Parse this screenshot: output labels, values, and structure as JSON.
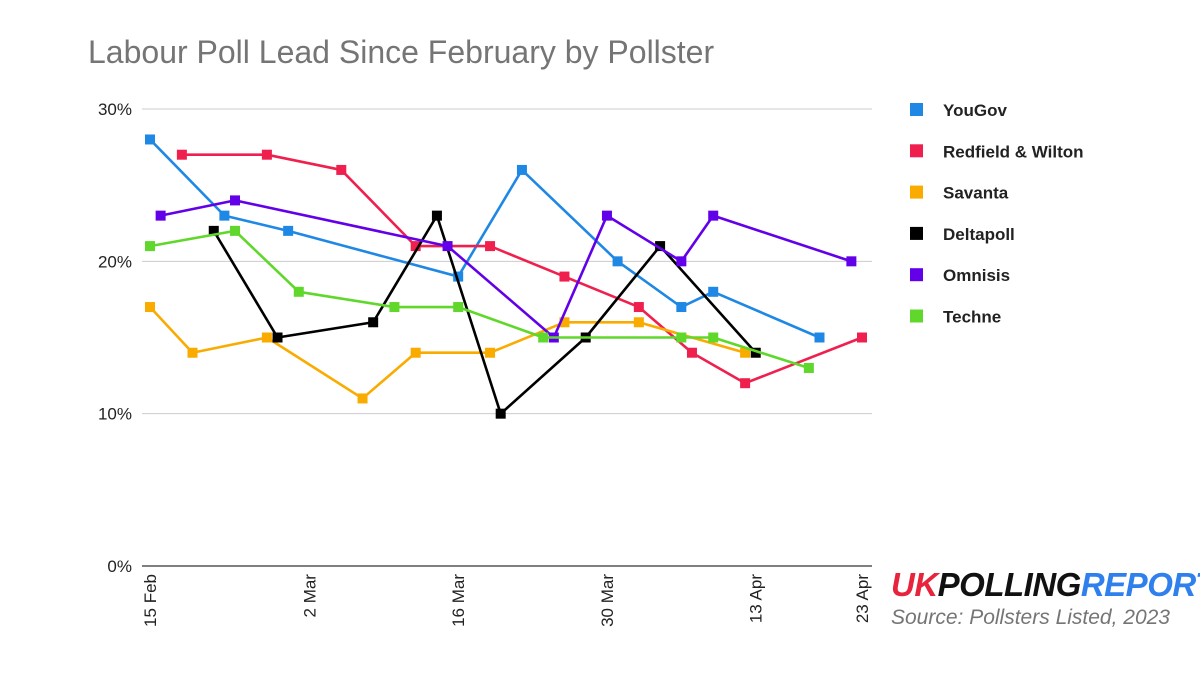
{
  "chart_data": {
    "type": "line",
    "title": "Labour Poll Lead Since February by Pollster",
    "xlabel": "",
    "ylabel": "",
    "ylim": [
      0,
      30
    ],
    "y_ticks": [
      "0%",
      "10%",
      "20%",
      "30%"
    ],
    "x_ticks": [
      "15 Feb",
      "2 Mar",
      "16 Mar",
      "30 Mar",
      "13 Apr",
      "23 Apr"
    ],
    "xlim": [
      "2023-02-15",
      "2023-04-23"
    ],
    "grid": true,
    "legend_position": "right",
    "series": [
      {
        "name": "YouGov",
        "color": "#1f88e5",
        "points": [
          {
            "x": "2023-02-15",
            "y": 28
          },
          {
            "x": "2023-02-22",
            "y": 23
          },
          {
            "x": "2023-02-28",
            "y": 22
          },
          {
            "x": "2023-03-16",
            "y": 19
          },
          {
            "x": "2023-03-22",
            "y": 26
          },
          {
            "x": "2023-03-31",
            "y": 20
          },
          {
            "x": "2023-04-06",
            "y": 17
          },
          {
            "x": "2023-04-09",
            "y": 18
          },
          {
            "x": "2023-04-19",
            "y": 15
          }
        ]
      },
      {
        "name": "Redfield & Wilton",
        "color": "#f0204e",
        "points": [
          {
            "x": "2023-02-18",
            "y": 27
          },
          {
            "x": "2023-02-26",
            "y": 27
          },
          {
            "x": "2023-03-05",
            "y": 26
          },
          {
            "x": "2023-03-12",
            "y": 21
          },
          {
            "x": "2023-03-19",
            "y": 21
          },
          {
            "x": "2023-03-26",
            "y": 19
          },
          {
            "x": "2023-04-02",
            "y": 17
          },
          {
            "x": "2023-04-07",
            "y": 14
          },
          {
            "x": "2023-04-12",
            "y": 12
          },
          {
            "x": "2023-04-23",
            "y": 15
          }
        ]
      },
      {
        "name": "Savanta",
        "color": "#f9ab00",
        "points": [
          {
            "x": "2023-02-15",
            "y": 17
          },
          {
            "x": "2023-02-19",
            "y": 14
          },
          {
            "x": "2023-02-26",
            "y": 15
          },
          {
            "x": "2023-03-07",
            "y": 11
          },
          {
            "x": "2023-03-12",
            "y": 14
          },
          {
            "x": "2023-03-19",
            "y": 14
          },
          {
            "x": "2023-03-26",
            "y": 16
          },
          {
            "x": "2023-04-02",
            "y": 16
          },
          {
            "x": "2023-04-12",
            "y": 14
          }
        ]
      },
      {
        "name": "Deltapoll",
        "color": "#000000",
        "points": [
          {
            "x": "2023-02-21",
            "y": 22
          },
          {
            "x": "2023-02-27",
            "y": 15
          },
          {
            "x": "2023-03-08",
            "y": 16
          },
          {
            "x": "2023-03-14",
            "y": 23
          },
          {
            "x": "2023-03-20",
            "y": 10
          },
          {
            "x": "2023-03-28",
            "y": 15
          },
          {
            "x": "2023-04-04",
            "y": 21
          },
          {
            "x": "2023-04-13",
            "y": 14
          }
        ]
      },
      {
        "name": "Omnisis",
        "color": "#6200ea",
        "points": [
          {
            "x": "2023-02-16",
            "y": 23
          },
          {
            "x": "2023-02-23",
            "y": 24
          },
          {
            "x": "2023-03-15",
            "y": 21
          },
          {
            "x": "2023-03-25",
            "y": 15
          },
          {
            "x": "2023-03-30",
            "y": 23
          },
          {
            "x": "2023-04-06",
            "y": 20
          },
          {
            "x": "2023-04-09",
            "y": 23
          },
          {
            "x": "2023-04-22",
            "y": 20
          }
        ]
      },
      {
        "name": "Techne",
        "color": "#5fd82b",
        "points": [
          {
            "x": "2023-02-15",
            "y": 21
          },
          {
            "x": "2023-02-23",
            "y": 22
          },
          {
            "x": "2023-03-01",
            "y": 18
          },
          {
            "x": "2023-03-10",
            "y": 17
          },
          {
            "x": "2023-03-16",
            "y": 17
          },
          {
            "x": "2023-03-24",
            "y": 15
          },
          {
            "x": "2023-04-06",
            "y": 15
          },
          {
            "x": "2023-04-09",
            "y": 15
          },
          {
            "x": "2023-04-18",
            "y": 13
          }
        ]
      }
    ]
  },
  "branding": {
    "uk": "UK",
    "polling": "POLLING",
    "report": "REPORT"
  },
  "source": "Source: Pollsters Listed, 2023"
}
